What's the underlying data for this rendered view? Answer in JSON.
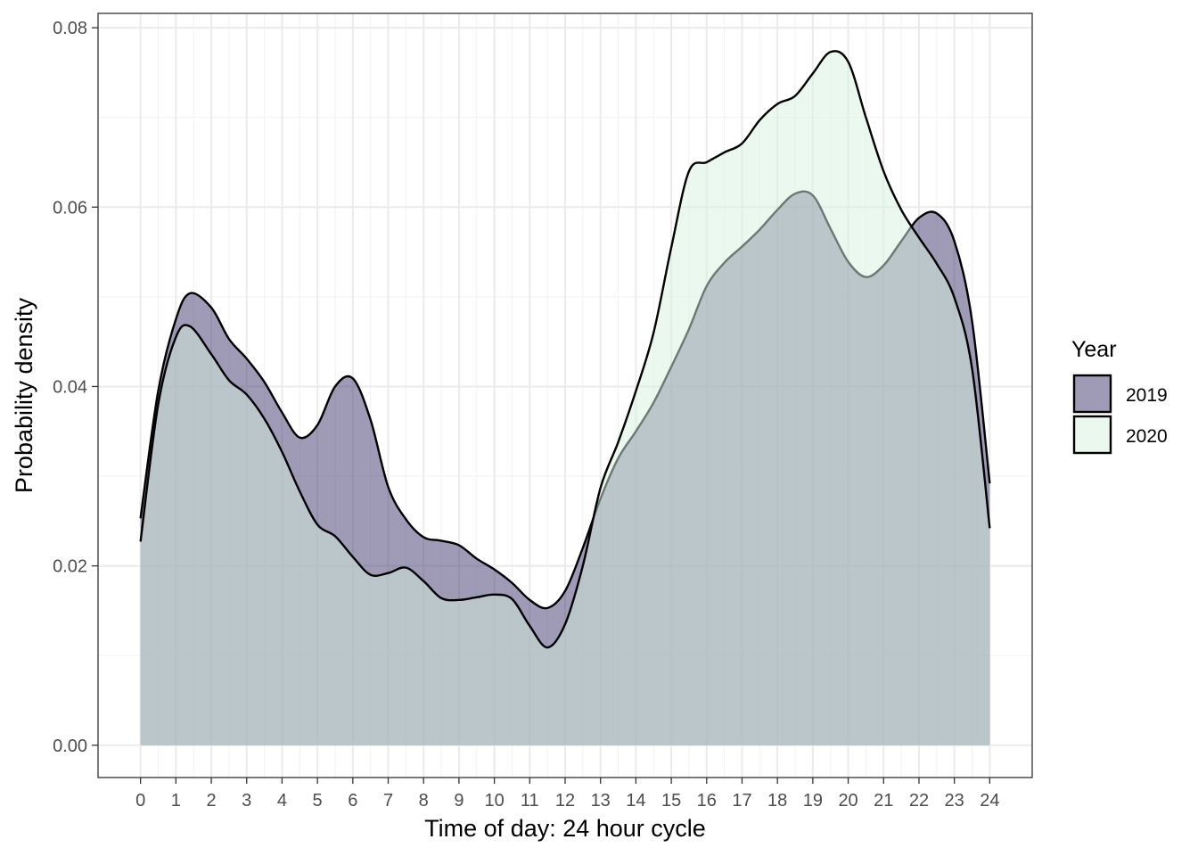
{
  "chart_data": {
    "type": "area",
    "xlabel": "Time of day: 24 hour cycle",
    "ylabel": "Probability density",
    "xlim": [
      -1.2,
      25.2
    ],
    "ylim": [
      -0.0036,
      0.0816
    ],
    "x_ticks": [
      0,
      1,
      2,
      3,
      4,
      5,
      6,
      7,
      8,
      9,
      10,
      11,
      12,
      13,
      14,
      15,
      16,
      17,
      18,
      19,
      20,
      21,
      22,
      23,
      24
    ],
    "x_tick_labels": [
      "0",
      "1",
      "2",
      "3",
      "4",
      "5",
      "6",
      "7",
      "8",
      "9",
      "10",
      "11",
      "12",
      "13",
      "14",
      "15",
      "16",
      "17",
      "18",
      "19",
      "20",
      "21",
      "22",
      "23",
      "24"
    ],
    "y_ticks": [
      0,
      0.02,
      0.04,
      0.06,
      0.08
    ],
    "y_tick_labels": [
      "0.00",
      "0.02",
      "0.04",
      "0.06",
      "0.08"
    ],
    "grid": true,
    "legend": {
      "title": "Year",
      "position": "right"
    },
    "series": [
      {
        "name": "2019",
        "fill": "#3f3770",
        "x": [
          0,
          0.5,
          1,
          1.4,
          2,
          2.5,
          3,
          3.5,
          4,
          4.5,
          5,
          5.5,
          6,
          6.5,
          7,
          7.5,
          8,
          8.5,
          9,
          9.5,
          10,
          10.5,
          11,
          11.5,
          12,
          12.5,
          13,
          13.5,
          14,
          14.5,
          15,
          15.5,
          16,
          16.5,
          17,
          17.5,
          18,
          18.5,
          19,
          19.5,
          20,
          20.5,
          21,
          21.5,
          22,
          22.5,
          23,
          23.5,
          24
        ],
        "values": [
          0.0253,
          0.0395,
          0.0475,
          0.0504,
          0.0488,
          0.0453,
          0.0431,
          0.0405,
          0.0371,
          0.0343,
          0.0357,
          0.04,
          0.0409,
          0.0363,
          0.0288,
          0.0252,
          0.0232,
          0.0228,
          0.0223,
          0.0208,
          0.0196,
          0.0181,
          0.0162,
          0.0153,
          0.0172,
          0.022,
          0.0275,
          0.032,
          0.035,
          0.0382,
          0.0422,
          0.0464,
          0.0512,
          0.0538,
          0.0556,
          0.0575,
          0.0597,
          0.0615,
          0.0613,
          0.0576,
          0.0539,
          0.0522,
          0.0535,
          0.0562,
          0.0588,
          0.0593,
          0.0562,
          0.0473,
          0.0292
        ]
      },
      {
        "name": "2020",
        "fill": "#d7f2e0",
        "x": [
          0,
          0.5,
          1,
          1.4,
          2,
          2.5,
          3,
          3.5,
          4,
          4.5,
          5,
          5.5,
          6,
          6.5,
          7,
          7.5,
          8,
          8.5,
          9,
          9.5,
          10,
          10.5,
          11,
          11.5,
          12,
          12.5,
          13,
          13.5,
          14,
          14.5,
          15,
          15.5,
          16,
          16.5,
          17,
          17.5,
          18,
          18.5,
          19,
          19.5,
          20,
          20.5,
          21,
          21.5,
          22,
          22.5,
          23,
          23.5,
          24
        ],
        "values": [
          0.0227,
          0.038,
          0.0455,
          0.0467,
          0.0436,
          0.0407,
          0.0391,
          0.0364,
          0.0327,
          0.0283,
          0.0246,
          0.0233,
          0.021,
          0.019,
          0.0192,
          0.0198,
          0.0183,
          0.0164,
          0.0162,
          0.0165,
          0.0168,
          0.0163,
          0.0133,
          0.0109,
          0.0135,
          0.02,
          0.0287,
          0.0338,
          0.0395,
          0.046,
          0.0555,
          0.064,
          0.065,
          0.0661,
          0.0671,
          0.0697,
          0.0715,
          0.0724,
          0.0749,
          0.0773,
          0.0762,
          0.07,
          0.064,
          0.0597,
          0.0566,
          0.0537,
          0.0499,
          0.042,
          0.0242
        ]
      }
    ]
  }
}
